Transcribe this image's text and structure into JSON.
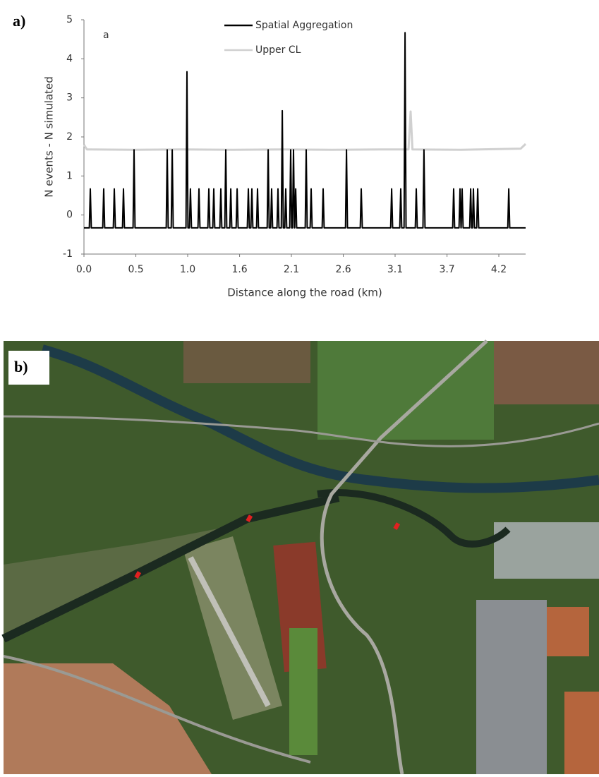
{
  "panel_labels": [
    "a)",
    "b)"
  ],
  "chart_data": {
    "type": "line",
    "annotation": "a",
    "xlabel": "Distance along the road (km)",
    "ylabel": "N events - N simulated",
    "xlim": [
      0,
      4.45
    ],
    "ylim": [
      -1,
      5
    ],
    "xticks": [
      {
        "value": 0,
        "label": "0.0"
      },
      {
        "value": 0.523,
        "label": "0.5"
      },
      {
        "value": 1.045,
        "label": "1.0"
      },
      {
        "value": 1.568,
        "label": "1.6"
      },
      {
        "value": 2.09,
        "label": "2.1"
      },
      {
        "value": 2.613,
        "label": "2.6"
      },
      {
        "value": 3.135,
        "label": "3.1"
      },
      {
        "value": 3.658,
        "label": "3.7"
      },
      {
        "value": 4.18,
        "label": "4.2"
      }
    ],
    "yticks": [
      -1,
      0,
      1,
      2,
      3,
      4,
      5
    ],
    "grid": false,
    "legend": "top",
    "series": [
      {
        "name": "Spatial Aggregation",
        "color": "#000000",
        "x": [
          0,
          0.054,
          0.064,
          0.074,
          0.189,
          0.199,
          0.209,
          0.296,
          0.306,
          0.316,
          0.388,
          0.398,
          0.408,
          0.495,
          0.505,
          0.515,
          0.829,
          0.839,
          0.849,
          0.879,
          0.889,
          0.899,
          1.028,
          1.038,
          1.048,
          1.063,
          1.073,
          1.083,
          1.149,
          1.159,
          1.169,
          1.248,
          1.258,
          1.268,
          1.298,
          1.308,
          1.318,
          1.369,
          1.379,
          1.389,
          1.419,
          1.429,
          1.439,
          1.469,
          1.479,
          1.489,
          1.533,
          1.543,
          1.553,
          1.646,
          1.656,
          1.666,
          1.682,
          1.692,
          1.702,
          1.739,
          1.749,
          1.759,
          1.846,
          1.856,
          1.866,
          1.881,
          1.891,
          1.901,
          1.945,
          1.955,
          1.965,
          1.988,
          1.998,
          2.008,
          2.023,
          2.033,
          2.043,
          2.073,
          2.083,
          2.093,
          2.101,
          2.111,
          2.121,
          2.123,
          2.133,
          2.143,
          2.229,
          2.239,
          2.249,
          2.279,
          2.289,
          2.299,
          2.4,
          2.41,
          2.42,
          2.635,
          2.645,
          2.655,
          2.784,
          2.794,
          2.804,
          3.09,
          3.1,
          3.11,
          3.182,
          3.192,
          3.202,
          3.225,
          3.235,
          3.245,
          3.338,
          3.348,
          3.358,
          3.416,
          3.426,
          3.436,
          3.715,
          3.725,
          3.735,
          3.779,
          3.789,
          3.799,
          3.8,
          3.81,
          3.82,
          3.886,
          3.896,
          3.906,
          3.914,
          3.924,
          3.934,
          3.957,
          3.967,
          3.977,
          4.27,
          4.28,
          4.29,
          4.45
        ],
        "values": [
          -0.33,
          -0.33,
          0.67,
          -0.33,
          -0.33,
          0.67,
          -0.33,
          -0.33,
          0.67,
          -0.33,
          -0.33,
          0.67,
          -0.33,
          -0.33,
          1.67,
          -0.33,
          -0.33,
          1.67,
          -0.33,
          -0.33,
          1.67,
          -0.33,
          -0.33,
          3.67,
          -0.33,
          -0.33,
          0.67,
          -0.33,
          -0.33,
          0.67,
          -0.33,
          -0.33,
          0.67,
          -0.33,
          -0.33,
          0.67,
          -0.33,
          -0.33,
          0.67,
          -0.33,
          -0.33,
          1.67,
          -0.33,
          -0.33,
          0.67,
          -0.33,
          -0.33,
          0.67,
          -0.33,
          -0.33,
          0.67,
          -0.33,
          -0.33,
          0.67,
          -0.33,
          -0.33,
          0.67,
          -0.33,
          -0.33,
          1.67,
          -0.33,
          -0.33,
          0.67,
          -0.33,
          -0.33,
          0.67,
          -0.33,
          -0.33,
          2.67,
          -0.33,
          -0.33,
          0.67,
          -0.33,
          -0.33,
          1.67,
          -0.33,
          -0.33,
          1.67,
          -0.33,
          -0.33,
          0.67,
          -0.33,
          -0.33,
          1.67,
          -0.33,
          -0.33,
          0.67,
          -0.33,
          -0.33,
          0.67,
          -0.33,
          -0.33,
          1.67,
          -0.33,
          -0.33,
          0.67,
          -0.33,
          -0.33,
          0.67,
          -0.33,
          -0.33,
          0.67,
          -0.33,
          -0.33,
          4.67,
          -0.33,
          -0.33,
          0.67,
          -0.33,
          -0.33,
          1.67,
          -0.33,
          -0.33,
          0.67,
          -0.33,
          -0.33,
          0.67,
          -0.33,
          -0.33,
          0.67,
          -0.33,
          -0.33,
          0.67,
          -0.33,
          -0.33,
          0.67,
          -0.33,
          -0.33,
          0.67,
          -0.33,
          -0.33,
          0.67,
          -0.33,
          -0.33
        ]
      },
      {
        "name": "Upper CL",
        "color": "#d0d0d0",
        "x": [
          0,
          0.03,
          0.5,
          1.0,
          1.5,
          2.0,
          2.5,
          3.0,
          3.27,
          3.291,
          3.31,
          3.8,
          4.4,
          4.45
        ],
        "values": [
          1.8,
          1.68,
          1.67,
          1.68,
          1.67,
          1.68,
          1.67,
          1.68,
          1.68,
          2.65,
          1.68,
          1.67,
          1.7,
          1.82
        ]
      }
    ]
  }
}
